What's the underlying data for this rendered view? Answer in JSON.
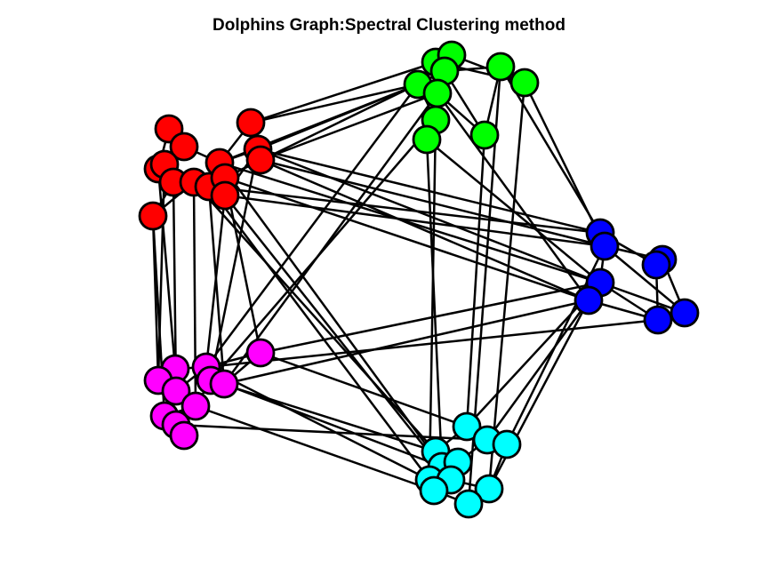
{
  "title": "Dolphins Graph:Spectral Clustering method",
  "clusters": [
    {
      "name": "cluster-red",
      "color": "#ff0000"
    },
    {
      "name": "cluster-green",
      "color": "#00ff00"
    },
    {
      "name": "cluster-blue",
      "color": "#0000ff"
    },
    {
      "name": "cluster-magenta",
      "color": "#ff00ff"
    },
    {
      "name": "cluster-cyan",
      "color": "#00ffff"
    }
  ]
}
